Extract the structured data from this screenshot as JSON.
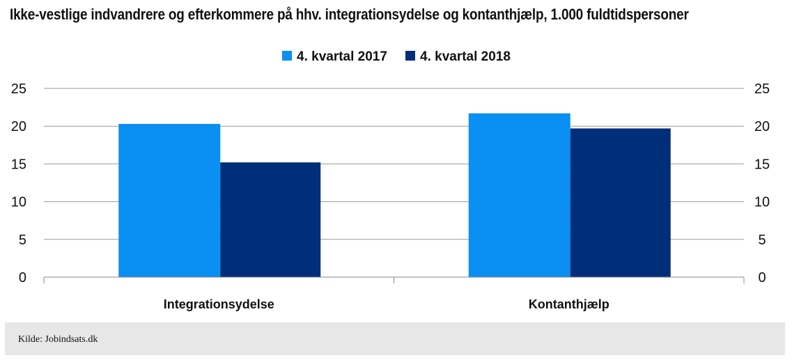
{
  "chart_data": {
    "type": "bar",
    "title": "Ikke-vestlige indvandrere og efterkommere på hhv. integrationsydelse og kontanthjælp, 1.000 fuldtidspersoner",
    "categories": [
      "Integrationsydelse",
      "Kontanthjælp"
    ],
    "series": [
      {
        "name": "4. kvartal 2017",
        "values": [
          20.3,
          21.7
        ],
        "color": "#0a8ff2"
      },
      {
        "name": "4. kvartal 2018",
        "values": [
          15.2,
          19.7
        ],
        "color": "#002e79"
      }
    ],
    "ylim": [
      0,
      25
    ],
    "yticks": [
      "0",
      "5",
      "10",
      "15",
      "20",
      "25"
    ],
    "grid": true,
    "legend_position": "top-center",
    "secondary_axis": "right"
  },
  "footer": {
    "source": "Kilde: Jobindsats.dk"
  }
}
